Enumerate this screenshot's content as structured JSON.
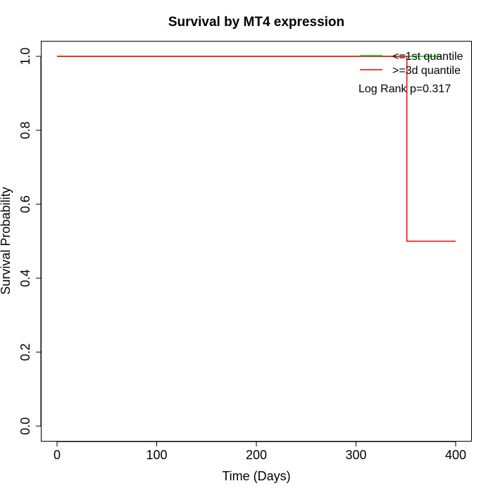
{
  "chart_data": {
    "type": "line",
    "step": true,
    "title": "Survival by MT4 expression",
    "xlabel": "Time (Days)",
    "ylabel": "Survival Probability",
    "xlim": [
      0,
      400
    ],
    "ylim": [
      0,
      1
    ],
    "x_ticks": [
      0,
      100,
      200,
      300,
      400
    ],
    "y_ticks": [
      0.0,
      0.2,
      0.4,
      0.6,
      0.8,
      1.0
    ],
    "x_tick_labels": [
      "0",
      "100",
      "200",
      "300",
      "400"
    ],
    "y_tick_labels": [
      "0.0",
      "0.2",
      "0.4",
      "0.6",
      "0.8",
      "1.0"
    ],
    "grid": false,
    "legend_position": "top-right",
    "series": [
      {
        "name": "<=1st quantile",
        "color": "#00cc00",
        "points": [
          [
            0,
            1.0
          ],
          [
            385,
            1.0
          ]
        ]
      },
      {
        "name": ">=3d quantile",
        "color": "#ff0000",
        "points": [
          [
            0,
            1.0
          ],
          [
            351,
            1.0
          ],
          [
            351,
            0.5
          ],
          [
            400,
            0.5
          ]
        ]
      }
    ],
    "annotation": "Log Rank p=0.317"
  }
}
